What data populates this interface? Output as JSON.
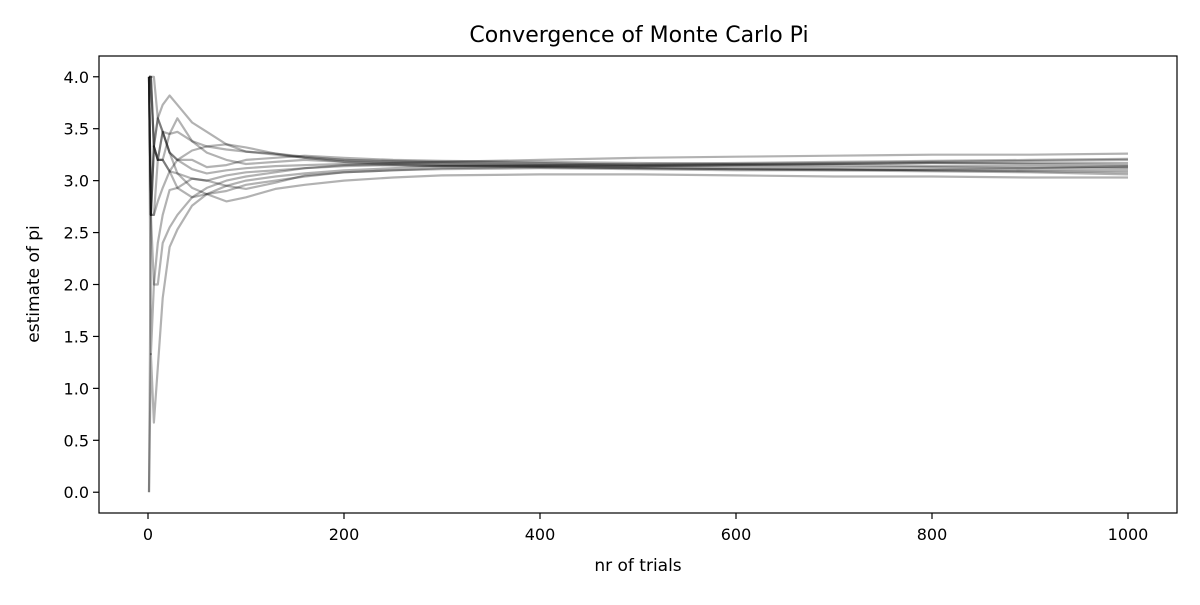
{
  "chart_data": {
    "type": "line",
    "title": "Convergence of Monte Carlo Pi",
    "xlabel": "nr of trials",
    "ylabel": "estimate of pi",
    "xlim": [
      -50,
      1050
    ],
    "ylim": [
      -0.2,
      4.2
    ],
    "xticks": [
      0,
      200,
      400,
      600,
      800,
      1000
    ],
    "xtick_labels": [
      "0",
      "200",
      "400",
      "600",
      "800",
      "1000"
    ],
    "yticks": [
      0.0,
      0.5,
      1.0,
      1.5,
      2.0,
      2.5,
      3.0,
      3.5,
      4.0
    ],
    "ytick_labels": [
      "0.0",
      "0.5",
      "1.0",
      "1.5",
      "2.0",
      "2.5",
      "3.0",
      "3.5",
      "4.0"
    ],
    "grid": false,
    "line_color": "#000000",
    "line_alpha": 0.3,
    "series": [
      {
        "x": [
          1,
          3,
          6,
          10,
          15,
          22,
          30,
          45,
          60,
          80,
          100,
          130,
          160,
          200,
          250,
          300,
          400,
          500,
          600,
          700,
          800,
          900,
          1000
        ],
        "values": [
          4.0,
          2.67,
          3.33,
          3.6,
          3.47,
          3.27,
          3.2,
          3.11,
          3.07,
          3.1,
          3.12,
          3.14,
          3.15,
          3.16,
          3.15,
          3.14,
          3.14,
          3.13,
          3.12,
          3.11,
          3.1,
          3.09,
          3.08
        ]
      },
      {
        "x": [
          1,
          3,
          6,
          10,
          15,
          22,
          30,
          45,
          60,
          80,
          100,
          130,
          160,
          200,
          250,
          300,
          400,
          500,
          600,
          700,
          800,
          900,
          1000
        ],
        "values": [
          0.0,
          2.67,
          3.33,
          3.2,
          3.47,
          3.45,
          3.6,
          3.38,
          3.27,
          3.2,
          3.16,
          3.18,
          3.2,
          3.18,
          3.17,
          3.16,
          3.15,
          3.14,
          3.15,
          3.16,
          3.17,
          3.16,
          3.15
        ]
      },
      {
        "x": [
          1,
          3,
          6,
          10,
          15,
          22,
          30,
          45,
          60,
          80,
          100,
          130,
          160,
          200,
          250,
          300,
          400,
          500,
          600,
          700,
          800,
          900,
          1000
        ],
        "values": [
          4.0,
          1.33,
          2.0,
          2.4,
          2.67,
          2.91,
          2.93,
          3.02,
          3.0,
          3.05,
          3.08,
          3.1,
          3.12,
          3.14,
          3.15,
          3.14,
          3.13,
          3.12,
          3.11,
          3.1,
          3.09,
          3.08,
          3.06
        ]
      },
      {
        "x": [
          1,
          3,
          6,
          10,
          15,
          22,
          30,
          45,
          60,
          80,
          100,
          130,
          160,
          200,
          250,
          300,
          400,
          500,
          600,
          700,
          800,
          900,
          1000
        ],
        "values": [
          4.0,
          4.0,
          3.33,
          3.6,
          3.73,
          3.82,
          3.73,
          3.56,
          3.47,
          3.35,
          3.28,
          3.25,
          3.22,
          3.2,
          3.18,
          3.17,
          3.16,
          3.16,
          3.17,
          3.18,
          3.19,
          3.2,
          3.21
        ]
      },
      {
        "x": [
          1,
          3,
          6,
          10,
          15,
          22,
          30,
          45,
          60,
          80,
          100,
          130,
          160,
          200,
          250,
          300,
          400,
          500,
          600,
          700,
          800,
          900,
          1000
        ],
        "values": [
          4.0,
          2.67,
          2.67,
          2.8,
          2.93,
          3.09,
          3.2,
          3.29,
          3.33,
          3.35,
          3.32,
          3.26,
          3.23,
          3.2,
          3.19,
          3.18,
          3.17,
          3.15,
          3.14,
          3.13,
          3.13,
          3.12,
          3.12
        ]
      },
      {
        "x": [
          1,
          3,
          6,
          10,
          15,
          22,
          30,
          45,
          60,
          80,
          100,
          130,
          160,
          200,
          250,
          300,
          400,
          500,
          600,
          700,
          800,
          900,
          1000
        ],
        "values": [
          4.0,
          4.0,
          3.33,
          3.2,
          3.2,
          3.09,
          2.93,
          2.84,
          2.87,
          2.9,
          2.96,
          3.0,
          3.04,
          3.08,
          3.1,
          3.12,
          3.13,
          3.12,
          3.11,
          3.11,
          3.1,
          3.1,
          3.1
        ]
      },
      {
        "x": [
          1,
          3,
          6,
          10,
          15,
          22,
          30,
          45,
          60,
          80,
          100,
          130,
          160,
          200,
          250,
          300,
          400,
          500,
          600,
          700,
          800,
          900,
          1000
        ],
        "values": [
          4.0,
          2.67,
          2.0,
          2.0,
          2.4,
          2.55,
          2.67,
          2.84,
          2.93,
          3.0,
          3.04,
          3.08,
          3.12,
          3.15,
          3.17,
          3.18,
          3.2,
          3.22,
          3.23,
          3.24,
          3.25,
          3.25,
          3.26
        ]
      },
      {
        "x": [
          1,
          3,
          6,
          10,
          15,
          22,
          30,
          45,
          60,
          80,
          100,
          130,
          160,
          200,
          250,
          300,
          400,
          500,
          600,
          700,
          800,
          900,
          1000
        ],
        "values": [
          4.0,
          4.0,
          4.0,
          3.6,
          3.47,
          3.27,
          3.07,
          2.93,
          2.87,
          2.8,
          2.84,
          2.92,
          2.96,
          3.0,
          3.03,
          3.05,
          3.06,
          3.06,
          3.05,
          3.04,
          3.04,
          3.03,
          3.03
        ]
      },
      {
        "x": [
          1,
          3,
          6,
          10,
          15,
          22,
          30,
          45,
          60,
          80,
          100,
          130,
          160,
          200,
          250,
          300,
          400,
          500,
          600,
          700,
          800,
          900,
          1000
        ],
        "values": [
          0.0,
          1.33,
          0.67,
          1.2,
          1.87,
          2.36,
          2.53,
          2.76,
          2.87,
          2.95,
          3.0,
          3.04,
          3.07,
          3.1,
          3.12,
          3.14,
          3.15,
          3.15,
          3.16,
          3.17,
          3.18,
          3.19,
          3.2
        ]
      },
      {
        "x": [
          1,
          3,
          6,
          10,
          15,
          22,
          30,
          45,
          60,
          80,
          100,
          130,
          160,
          200,
          250,
          300,
          400,
          500,
          600,
          700,
          800,
          900,
          1000
        ],
        "values": [
          4.0,
          2.67,
          3.33,
          3.2,
          3.2,
          3.45,
          3.47,
          3.38,
          3.33,
          3.3,
          3.28,
          3.26,
          3.22,
          3.18,
          3.16,
          3.15,
          3.14,
          3.14,
          3.15,
          3.15,
          3.14,
          3.14,
          3.13
        ]
      },
      {
        "x": [
          1,
          3,
          6,
          10,
          15,
          22,
          30,
          45,
          60,
          80,
          100,
          130,
          160,
          200,
          250,
          300,
          400,
          500,
          600,
          700,
          800,
          900,
          1000
        ],
        "values": [
          4.0,
          4.0,
          3.33,
          3.2,
          3.47,
          3.27,
          3.2,
          3.2,
          3.13,
          3.15,
          3.2,
          3.22,
          3.24,
          3.22,
          3.2,
          3.19,
          3.18,
          3.17,
          3.16,
          3.16,
          3.17,
          3.17,
          3.17
        ]
      },
      {
        "x": [
          1,
          3,
          6,
          10,
          15,
          22,
          30,
          45,
          60,
          80,
          100,
          130,
          160,
          200,
          250,
          300,
          400,
          500,
          600,
          700,
          800,
          900,
          1000
        ],
        "values": [
          4.0,
          2.67,
          2.67,
          3.2,
          3.2,
          3.09,
          3.07,
          3.02,
          3.0,
          2.95,
          2.92,
          2.98,
          3.05,
          3.08,
          3.1,
          3.11,
          3.12,
          3.11,
          3.1,
          3.1,
          3.11,
          3.12,
          3.14
        ]
      }
    ]
  }
}
